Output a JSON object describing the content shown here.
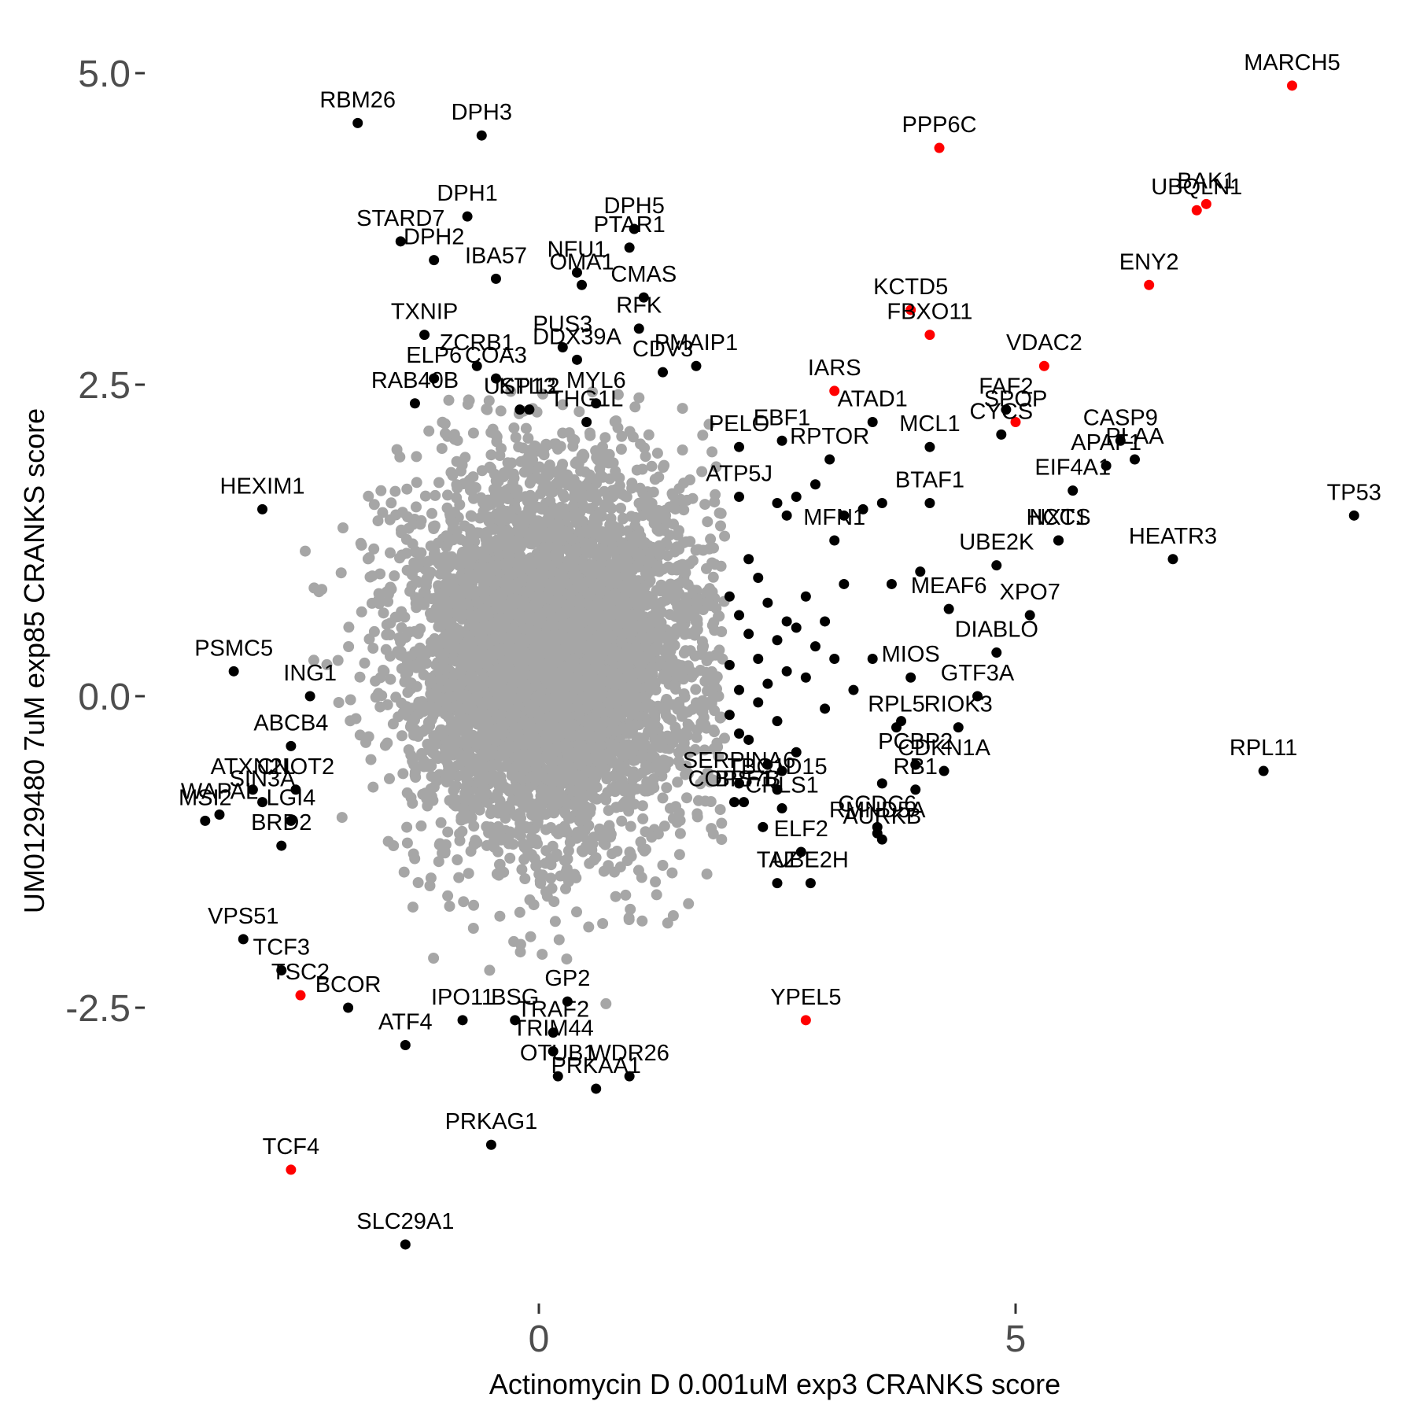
{
  "chart_data": {
    "type": "scatter",
    "title": "",
    "xlabel": "Actinomycin D 0.001uM exp3 CRANKS score",
    "ylabel": "UM0129480 7uM exp85 CRANKS score",
    "xlim": [
      -4.0,
      9.1
    ],
    "ylim": [
      -4.8,
      5.2
    ],
    "grid": false,
    "x_ticks": [
      {
        "value": 0,
        "label": "0"
      },
      {
        "value": 5,
        "label": "5"
      }
    ],
    "y_ticks": [
      {
        "value": -2.5,
        "label": "-2.5"
      },
      {
        "value": 0,
        "label": "0.0"
      },
      {
        "value": 2.5,
        "label": "2.5"
      },
      {
        "value": 5,
        "label": "5.0"
      }
    ],
    "colors": {
      "background_points": "#a6a6a6",
      "labeled_points": "#000000",
      "highlight_points": "#ff0000",
      "tick_text": "#4d4d4d",
      "axis_text": "#000000"
    },
    "background_cloud": {
      "description": "dense gray cloud of unlabeled genes centered near (0, 0)",
      "center": [
        0.1,
        0.3
      ],
      "sd": [
        0.75,
        0.75
      ],
      "count": 5500
    },
    "points": [
      {
        "label": "MARCH5",
        "x": 7.9,
        "y": 4.9,
        "highlight": true
      },
      {
        "label": "PPP6C",
        "x": 4.2,
        "y": 4.4,
        "highlight": true
      },
      {
        "label": "BAK1",
        "x": 7.0,
        "y": 3.95,
        "highlight": true
      },
      {
        "label": "UBQLN1",
        "x": 6.9,
        "y": 3.9,
        "highlight": true
      },
      {
        "label": "ENY2",
        "x": 6.4,
        "y": 3.3,
        "highlight": true
      },
      {
        "label": "KCTD5",
        "x": 3.9,
        "y": 3.1,
        "highlight": true
      },
      {
        "label": "FBXO11",
        "x": 4.1,
        "y": 2.9,
        "highlight": true
      },
      {
        "label": "VDAC2",
        "x": 5.3,
        "y": 2.65,
        "highlight": true
      },
      {
        "label": "IARS",
        "x": 3.1,
        "y": 2.45,
        "highlight": true
      },
      {
        "label": "SPOP",
        "x": 5.0,
        "y": 2.2,
        "highlight": true
      },
      {
        "label": "YPEL5",
        "x": 2.8,
        "y": -2.6,
        "highlight": true
      },
      {
        "label": "TSC2",
        "x": -2.5,
        "y": -2.4,
        "highlight": true
      },
      {
        "label": "TCF4",
        "x": -2.6,
        "y": -3.8,
        "highlight": true
      },
      {
        "label": "RBM26",
        "x": -1.9,
        "y": 4.6,
        "highlight": false
      },
      {
        "label": "DPH3",
        "x": -0.6,
        "y": 4.5,
        "highlight": false
      },
      {
        "label": "DPH1",
        "x": -0.75,
        "y": 3.85,
        "highlight": false
      },
      {
        "label": "DPH5",
        "x": 1.0,
        "y": 3.75,
        "highlight": false
      },
      {
        "label": "PTAR1",
        "x": 0.95,
        "y": 3.6,
        "highlight": false
      },
      {
        "label": "STARD7",
        "x": -1.45,
        "y": 3.65,
        "highlight": false
      },
      {
        "label": "DPH2",
        "x": -1.1,
        "y": 3.5,
        "highlight": false
      },
      {
        "label": "IBA57",
        "x": -0.45,
        "y": 3.35,
        "highlight": false
      },
      {
        "label": "NFU1",
        "x": 0.4,
        "y": 3.4,
        "highlight": false
      },
      {
        "label": "OMA1",
        "x": 0.45,
        "y": 3.3,
        "highlight": false
      },
      {
        "label": "CMAS",
        "x": 1.1,
        "y": 3.2,
        "highlight": false
      },
      {
        "label": "RFK",
        "x": 1.05,
        "y": 2.95,
        "highlight": false
      },
      {
        "label": "TXNIP",
        "x": -1.2,
        "y": 2.9,
        "highlight": false
      },
      {
        "label": "ZCRB1",
        "x": -0.65,
        "y": 2.65,
        "highlight": false
      },
      {
        "label": "COA3",
        "x": -0.45,
        "y": 2.55,
        "highlight": false
      },
      {
        "label": "PUS3",
        "x": 0.25,
        "y": 2.8,
        "highlight": false
      },
      {
        "label": "DDX39A",
        "x": 0.4,
        "y": 2.7,
        "highlight": false
      },
      {
        "label": "PMAIP1",
        "x": 1.65,
        "y": 2.65,
        "highlight": false
      },
      {
        "label": "ELP6",
        "x": -1.1,
        "y": 2.55,
        "highlight": false
      },
      {
        "label": "RAB40B",
        "x": -1.3,
        "y": 2.35,
        "highlight": false
      },
      {
        "label": "USP13",
        "x": -0.2,
        "y": 2.3,
        "highlight": false
      },
      {
        "label": "KTI12",
        "x": -0.1,
        "y": 2.3,
        "highlight": false
      },
      {
        "label": "THG1L",
        "x": 0.5,
        "y": 2.2,
        "highlight": false
      },
      {
        "label": "MYL6",
        "x": 0.6,
        "y": 2.35,
        "highlight": false
      },
      {
        "label": "CDV3",
        "x": 1.3,
        "y": 2.6,
        "highlight": false
      },
      {
        "label": "ATAD1",
        "x": 3.5,
        "y": 2.2,
        "highlight": false
      },
      {
        "label": "RPTOR",
        "x": 3.05,
        "y": 1.9,
        "highlight": false
      },
      {
        "label": "EBF1",
        "x": 2.55,
        "y": 2.05,
        "highlight": false
      },
      {
        "label": "MCL1",
        "x": 4.1,
        "y": 2.0,
        "highlight": false
      },
      {
        "label": "FAF2",
        "x": 4.9,
        "y": 2.3,
        "highlight": false
      },
      {
        "label": "CASP9",
        "x": 6.1,
        "y": 2.05,
        "highlight": false
      },
      {
        "label": "PLAA",
        "x": 6.25,
        "y": 1.9,
        "highlight": false
      },
      {
        "label": "CYCS",
        "x": 4.85,
        "y": 2.1,
        "highlight": false
      },
      {
        "label": "APAF1",
        "x": 5.95,
        "y": 1.85,
        "highlight": false
      },
      {
        "label": "BTAF1",
        "x": 4.1,
        "y": 1.55,
        "highlight": false
      },
      {
        "label": "PELO",
        "x": 2.1,
        "y": 2.0,
        "highlight": false
      },
      {
        "label": "ATP5J",
        "x": 2.1,
        "y": 1.6,
        "highlight": false
      },
      {
        "label": "EIF4A1",
        "x": 5.6,
        "y": 1.65,
        "highlight": false
      },
      {
        "label": "HCCS",
        "x": 5.45,
        "y": 1.25,
        "highlight": false
      },
      {
        "label": "HEATR3",
        "x": 6.65,
        "y": 1.1,
        "highlight": false
      },
      {
        "label": "TP53",
        "x": 8.55,
        "y": 1.45,
        "highlight": false
      },
      {
        "label": "MFN1",
        "x": 3.1,
        "y": 1.25,
        "highlight": false
      },
      {
        "label": "UBE2K",
        "x": 4.8,
        "y": 1.05,
        "highlight": false
      },
      {
        "label": "NXT1",
        "x": 5.45,
        "y": 1.25,
        "highlight": false
      },
      {
        "label": "MEAF6",
        "x": 4.3,
        "y": 0.7,
        "highlight": false
      },
      {
        "label": "XPO7",
        "x": 5.15,
        "y": 0.65,
        "highlight": false
      },
      {
        "label": "MIOS",
        "x": 3.9,
        "y": 0.15,
        "highlight": false
      },
      {
        "label": "DIABLO",
        "x": 4.8,
        "y": 0.35,
        "highlight": false
      },
      {
        "label": "GTF3A",
        "x": 4.6,
        "y": 0.0,
        "highlight": false
      },
      {
        "label": "RPL5",
        "x": 3.75,
        "y": -0.25,
        "highlight": false
      },
      {
        "label": "PCBP2",
        "x": 3.95,
        "y": -0.55,
        "highlight": false
      },
      {
        "label": "RIOK3",
        "x": 4.4,
        "y": -0.25,
        "highlight": false
      },
      {
        "label": "RB1",
        "x": 3.95,
        "y": -0.75,
        "highlight": false
      },
      {
        "label": "CDKN1A",
        "x": 4.25,
        "y": -0.6,
        "highlight": false
      },
      {
        "label": "RPL11",
        "x": 7.6,
        "y": -0.6,
        "highlight": false
      },
      {
        "label": "HEXIM1",
        "x": -2.9,
        "y": 1.5,
        "highlight": false
      },
      {
        "label": "PSMC5",
        "x": -3.2,
        "y": 0.2,
        "highlight": false
      },
      {
        "label": "ING1",
        "x": -2.4,
        "y": 0.0,
        "highlight": false
      },
      {
        "label": "ABCB4",
        "x": -2.6,
        "y": -0.4,
        "highlight": false
      },
      {
        "label": "CNOT2",
        "x": -2.55,
        "y": -0.75,
        "highlight": false
      },
      {
        "label": "ATXN2L",
        "x": -3.0,
        "y": -0.75,
        "highlight": false
      },
      {
        "label": "SIN3A",
        "x": -2.9,
        "y": -0.85,
        "highlight": false
      },
      {
        "label": "WAPAL",
        "x": -3.35,
        "y": -0.95,
        "highlight": false
      },
      {
        "label": "LGI4",
        "x": -2.6,
        "y": -1.0,
        "highlight": false
      },
      {
        "label": "MSI2",
        "x": -3.5,
        "y": -1.0,
        "highlight": false
      },
      {
        "label": "BRD2",
        "x": -2.7,
        "y": -1.2,
        "highlight": false
      },
      {
        "label": "SERPINA6",
        "x": 2.1,
        "y": -0.7,
        "highlight": false
      },
      {
        "label": "BRF1",
        "x": 2.15,
        "y": -0.85,
        "highlight": false
      },
      {
        "label": "TBC1D15",
        "x": 2.5,
        "y": -0.75,
        "highlight": false
      },
      {
        "label": "COPS7B",
        "x": 2.05,
        "y": -0.85,
        "highlight": false
      },
      {
        "label": "CRLS1",
        "x": 2.55,
        "y": -0.9,
        "highlight": false
      },
      {
        "label": "RMND5A",
        "x": 3.55,
        "y": -1.1,
        "highlight": false
      },
      {
        "label": "CCDC6",
        "x": 3.55,
        "y": -1.05,
        "highlight": false
      },
      {
        "label": "ELF2",
        "x": 2.75,
        "y": -1.25,
        "highlight": false
      },
      {
        "label": "AURKB",
        "x": 3.6,
        "y": -1.15,
        "highlight": false
      },
      {
        "label": "TAZ",
        "x": 2.5,
        "y": -1.5,
        "highlight": false
      },
      {
        "label": "UBE2H",
        "x": 2.85,
        "y": -1.5,
        "highlight": false
      },
      {
        "label": "VPS51",
        "x": -3.1,
        "y": -1.95,
        "highlight": false
      },
      {
        "label": "TCF3",
        "x": -2.7,
        "y": -2.2,
        "highlight": false
      },
      {
        "label": "BCOR",
        "x": -2.0,
        "y": -2.5,
        "highlight": false
      },
      {
        "label": "IPO11",
        "x": -0.8,
        "y": -2.6,
        "highlight": false
      },
      {
        "label": "BSG",
        "x": -0.25,
        "y": -2.6,
        "highlight": false
      },
      {
        "label": "GP2",
        "x": 0.3,
        "y": -2.45,
        "highlight": false
      },
      {
        "label": "TRAF2",
        "x": 0.15,
        "y": -2.7,
        "highlight": false
      },
      {
        "label": "ATF4",
        "x": -1.4,
        "y": -2.8,
        "highlight": false
      },
      {
        "label": "TRIM44",
        "x": 0.15,
        "y": -2.85,
        "highlight": false
      },
      {
        "label": "OTUB1",
        "x": 0.2,
        "y": -3.05,
        "highlight": false
      },
      {
        "label": "WDR26",
        "x": 0.95,
        "y": -3.05,
        "highlight": false
      },
      {
        "label": "PRKAA1",
        "x": 0.6,
        "y": -3.15,
        "highlight": false
      },
      {
        "label": "PRKAG1",
        "x": -0.5,
        "y": -3.6,
        "highlight": false
      },
      {
        "label": "SLC29A1",
        "x": -1.4,
        "y": -4.4,
        "highlight": false
      }
    ],
    "unlabeled_black_points": [
      [
        2.2,
        1.1
      ],
      [
        2.3,
        0.95
      ],
      [
        2.0,
        0.8
      ],
      [
        2.4,
        0.75
      ],
      [
        2.1,
        0.65
      ],
      [
        2.6,
        0.6
      ],
      [
        2.2,
        0.5
      ],
      [
        2.5,
        0.45
      ],
      [
        2.3,
        0.3
      ],
      [
        2.0,
        0.25
      ],
      [
        2.6,
        0.2
      ],
      [
        2.4,
        0.1
      ],
      [
        2.1,
        0.05
      ],
      [
        2.8,
        0.15
      ],
      [
        2.3,
        -0.05
      ],
      [
        2.0,
        -0.15
      ],
      [
        2.5,
        -0.2
      ],
      [
        2.2,
        -0.35
      ],
      [
        2.7,
        0.55
      ],
      [
        2.9,
        0.4
      ],
      [
        3.0,
        0.6
      ],
      [
        2.8,
        0.8
      ],
      [
        3.2,
        0.9
      ],
      [
        3.1,
        0.3
      ],
      [
        3.3,
        0.05
      ],
      [
        3.0,
        -0.1
      ],
      [
        2.7,
        -0.45
      ],
      [
        2.4,
        -0.55
      ],
      [
        3.2,
        1.45
      ],
      [
        3.4,
        1.5
      ],
      [
        3.6,
        1.55
      ],
      [
        2.6,
        1.45
      ],
      [
        2.9,
        1.7
      ],
      [
        2.7,
        1.6
      ],
      [
        2.5,
        1.55
      ],
      [
        3.5,
        0.3
      ],
      [
        3.7,
        0.9
      ],
      [
        4.0,
        1.0
      ],
      [
        3.6,
        -0.7
      ],
      [
        3.8,
        -0.2
      ],
      [
        2.55,
        -0.6
      ],
      [
        2.1,
        -0.3
      ],
      [
        2.35,
        -1.05
      ]
    ]
  }
}
